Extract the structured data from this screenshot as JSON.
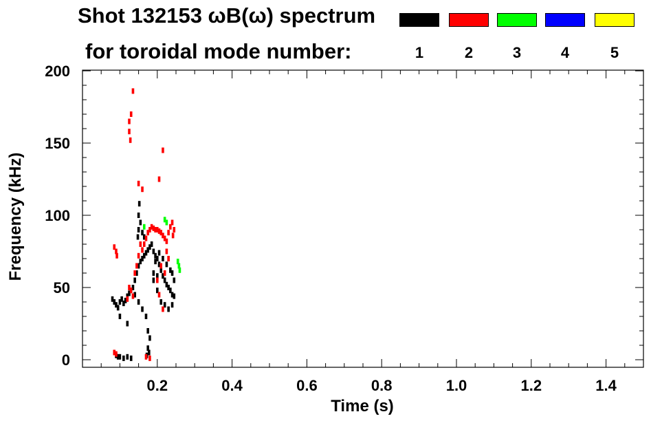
{
  "chart_data": {
    "type": "scatter",
    "title_line1": "Shot 132153 ωB(ω) spectrum",
    "title_line2": "for toroidal mode number:",
    "xlabel": "Time (s)",
    "ylabel": "Frequency (kHz)",
    "xlim": [
      0.0,
      1.5
    ],
    "ylim": [
      0,
      200
    ],
    "x_ticks": [
      "0.2",
      "0.4",
      "0.6",
      "0.8",
      "1.0",
      "1.2",
      "1.4"
    ],
    "y_ticks": [
      "0",
      "50",
      "100",
      "150",
      "200"
    ],
    "legend": [
      {
        "label": "1",
        "color": "#000000"
      },
      {
        "label": "2",
        "color": "#ff0000"
      },
      {
        "label": "3",
        "color": "#00ff00"
      },
      {
        "label": "4",
        "color": "#0000ff"
      },
      {
        "label": "5",
        "color": "#ffff00"
      }
    ],
    "series": [
      {
        "name": "1",
        "color": "#000000",
        "points": [
          [
            0.08,
            42
          ],
          [
            0.085,
            40
          ],
          [
            0.09,
            38
          ],
          [
            0.095,
            36
          ],
          [
            0.1,
            40
          ],
          [
            0.105,
            42
          ],
          [
            0.11,
            39
          ],
          [
            0.115,
            41
          ],
          [
            0.12,
            44
          ],
          [
            0.125,
            46
          ],
          [
            0.13,
            48
          ],
          [
            0.135,
            50
          ],
          [
            0.14,
            55
          ],
          [
            0.145,
            60
          ],
          [
            0.15,
            65
          ],
          [
            0.155,
            68
          ],
          [
            0.16,
            70
          ],
          [
            0.165,
            72
          ],
          [
            0.17,
            74
          ],
          [
            0.175,
            76
          ],
          [
            0.18,
            78
          ],
          [
            0.185,
            80
          ],
          [
            0.19,
            75
          ],
          [
            0.195,
            72
          ],
          [
            0.2,
            70
          ],
          [
            0.205,
            66
          ],
          [
            0.21,
            62
          ],
          [
            0.215,
            58
          ],
          [
            0.22,
            55
          ],
          [
            0.225,
            52
          ],
          [
            0.23,
            50
          ],
          [
            0.235,
            48
          ],
          [
            0.24,
            45
          ],
          [
            0.245,
            44
          ],
          [
            0.1,
            30
          ],
          [
            0.12,
            25
          ],
          [
            0.14,
            45
          ],
          [
            0.15,
            40
          ],
          [
            0.16,
            35
          ],
          [
            0.17,
            30
          ],
          [
            0.175,
            20
          ],
          [
            0.18,
            15
          ],
          [
            0.175,
            8
          ],
          [
            0.172,
            3
          ],
          [
            0.178,
            5
          ],
          [
            0.19,
            55
          ],
          [
            0.2,
            48
          ],
          [
            0.21,
            40
          ],
          [
            0.22,
            38
          ],
          [
            0.23,
            35
          ],
          [
            0.24,
            38
          ],
          [
            0.245,
            55
          ],
          [
            0.24,
            60
          ],
          [
            0.235,
            62
          ],
          [
            0.15,
            90
          ],
          [
            0.155,
            95
          ],
          [
            0.15,
            100
          ],
          [
            0.152,
            108
          ],
          [
            0.148,
            85
          ],
          [
            0.16,
            88
          ],
          [
            0.165,
            85
          ],
          [
            0.09,
            3
          ],
          [
            0.095,
            2
          ],
          [
            0.1,
            2
          ],
          [
            0.11,
            1
          ],
          [
            0.12,
            2
          ],
          [
            0.13,
            1
          ],
          [
            0.19,
            60
          ],
          [
            0.2,
            58
          ],
          [
            0.195,
            68
          ],
          [
            0.205,
            74
          ],
          [
            0.215,
            70
          ],
          [
            0.225,
            66
          ]
        ]
      },
      {
        "name": "2",
        "color": "#ff0000",
        "points": [
          [
            0.135,
            186
          ],
          [
            0.125,
            165
          ],
          [
            0.125,
            158
          ],
          [
            0.128,
            152
          ],
          [
            0.13,
            170
          ],
          [
            0.215,
            145
          ],
          [
            0.205,
            125
          ],
          [
            0.15,
            122
          ],
          [
            0.16,
            118
          ],
          [
            0.165,
            80
          ],
          [
            0.17,
            84
          ],
          [
            0.175,
            88
          ],
          [
            0.18,
            90
          ],
          [
            0.185,
            92
          ],
          [
            0.19,
            91
          ],
          [
            0.195,
            90
          ],
          [
            0.2,
            90
          ],
          [
            0.205,
            89
          ],
          [
            0.21,
            88
          ],
          [
            0.215,
            86
          ],
          [
            0.22,
            84
          ],
          [
            0.225,
            82
          ],
          [
            0.23,
            88
          ],
          [
            0.235,
            92
          ],
          [
            0.24,
            95
          ],
          [
            0.245,
            90
          ],
          [
            0.242,
            86
          ],
          [
            0.155,
            80
          ],
          [
            0.16,
            76
          ],
          [
            0.15,
            72
          ],
          [
            0.145,
            65
          ],
          [
            0.14,
            60
          ],
          [
            0.085,
            78
          ],
          [
            0.09,
            75
          ],
          [
            0.092,
            72
          ],
          [
            0.125,
            50
          ],
          [
            0.13,
            48
          ],
          [
            0.135,
            44
          ],
          [
            0.12,
            42
          ],
          [
            0.2,
            55
          ],
          [
            0.205,
            45
          ],
          [
            0.215,
            35
          ],
          [
            0.22,
            60
          ],
          [
            0.17,
            2
          ],
          [
            0.18,
            1
          ],
          [
            0.085,
            5
          ],
          [
            0.09,
            4
          ],
          [
            0.225,
            75
          ],
          [
            0.23,
            70
          ],
          [
            0.21,
            65
          ]
        ]
      },
      {
        "name": "3",
        "color": "#00ff00",
        "points": [
          [
            0.22,
            97
          ],
          [
            0.225,
            95
          ],
          [
            0.255,
            68
          ],
          [
            0.258,
            65
          ],
          [
            0.26,
            62
          ],
          [
            0.165,
            92
          ]
        ]
      },
      {
        "name": "4",
        "color": "#0000ff",
        "points": []
      },
      {
        "name": "5",
        "color": "#ffff00",
        "points": []
      }
    ]
  }
}
